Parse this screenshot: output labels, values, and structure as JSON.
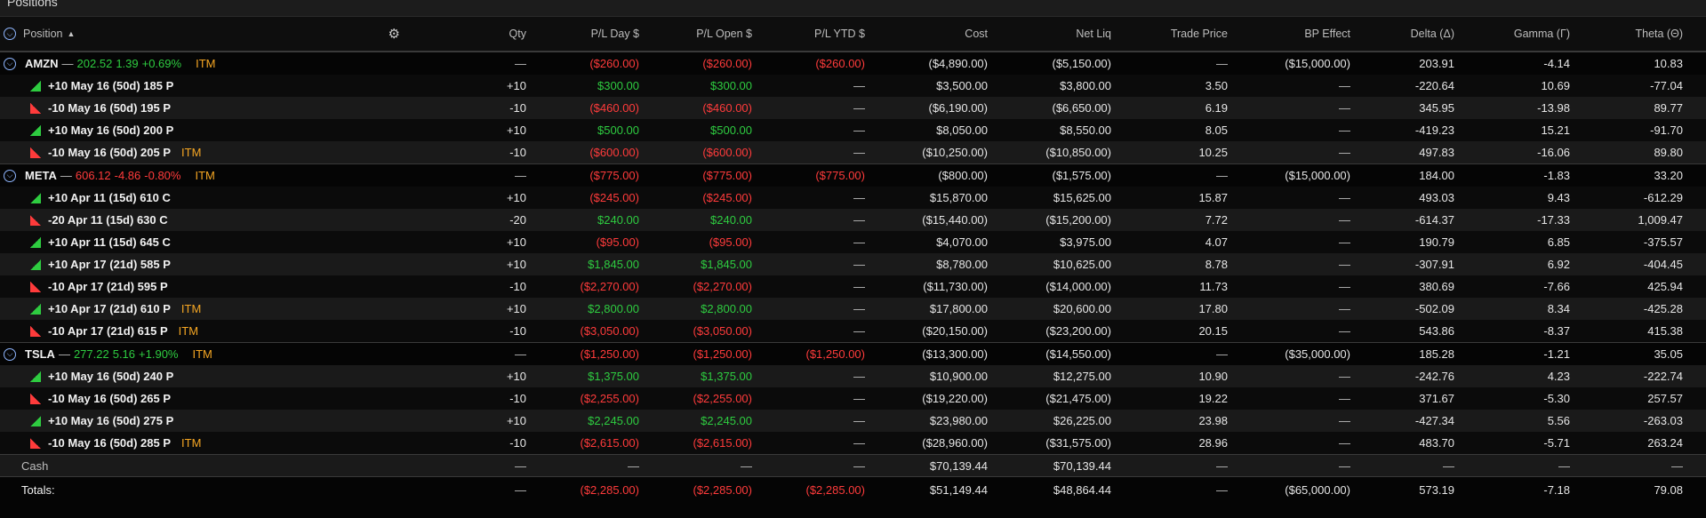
{
  "title": "Positions",
  "headers": {
    "position": "Position",
    "qty": "Qty",
    "pl_day": "P/L Day $",
    "pl_open": "P/L Open $",
    "pl_ytd": "P/L YTD $",
    "cost": "Cost",
    "net_liq": "Net Liq",
    "trade_price": "Trade Price",
    "bp_effect": "BP Effect",
    "delta": "Delta (Δ)",
    "gamma": "Gamma (Γ)",
    "theta": "Theta (Θ)"
  },
  "icons": {
    "expand": "expand-collapse-icon",
    "gear": "gear-icon",
    "sort": "sort-ascending-icon"
  },
  "colors": {
    "positive": "#2ecc40",
    "negative": "#ff3b3b",
    "itm": "#f5a623"
  },
  "groups": [
    {
      "symbol": "AMZN",
      "dash": "—",
      "price": "202.52",
      "change": "1.39",
      "change_pct": "+0.69%",
      "trend": "up",
      "itm": "ITM",
      "qty": "—",
      "pl_day": "($260.00)",
      "pl_open": "($260.00)",
      "pl_ytd": "($260.00)",
      "cost": "($4,890.00)",
      "net_liq": "($5,150.00)",
      "trade_price": "—",
      "bp_effect": "($15,000.00)",
      "delta": "203.91",
      "gamma": "-4.14",
      "theta": "10.83",
      "legs": [
        {
          "dir": "up",
          "label": "+10 May 16 (50d) 185 P",
          "itm": "",
          "qty": "+10",
          "pl_day": "$300.00",
          "pl_day_sign": "pos",
          "pl_open": "$300.00",
          "pl_open_sign": "pos",
          "pl_ytd": "—",
          "cost": "$3,500.00",
          "net_liq": "$3,800.00",
          "trade_price": "3.50",
          "bp_effect": "—",
          "delta": "-220.64",
          "gamma": "10.69",
          "theta": "-77.04"
        },
        {
          "dir": "dn",
          "label": "-10 May 16 (50d) 195 P",
          "itm": "",
          "qty": "-10",
          "pl_day": "($460.00)",
          "pl_day_sign": "neg",
          "pl_open": "($460.00)",
          "pl_open_sign": "neg",
          "pl_ytd": "—",
          "cost": "($6,190.00)",
          "net_liq": "($6,650.00)",
          "trade_price": "6.19",
          "bp_effect": "—",
          "delta": "345.95",
          "gamma": "-13.98",
          "theta": "89.77"
        },
        {
          "dir": "up",
          "label": "+10 May 16 (50d) 200 P",
          "itm": "",
          "qty": "+10",
          "pl_day": "$500.00",
          "pl_day_sign": "pos",
          "pl_open": "$500.00",
          "pl_open_sign": "pos",
          "pl_ytd": "—",
          "cost": "$8,050.00",
          "net_liq": "$8,550.00",
          "trade_price": "8.05",
          "bp_effect": "—",
          "delta": "-419.23",
          "gamma": "15.21",
          "theta": "-91.70"
        },
        {
          "dir": "dn",
          "label": "-10 May 16 (50d) 205 P",
          "itm": "ITM",
          "qty": "-10",
          "pl_day": "($600.00)",
          "pl_day_sign": "neg",
          "pl_open": "($600.00)",
          "pl_open_sign": "neg",
          "pl_ytd": "—",
          "cost": "($10,250.00)",
          "net_liq": "($10,850.00)",
          "trade_price": "10.25",
          "bp_effect": "—",
          "delta": "497.83",
          "gamma": "-16.06",
          "theta": "89.80"
        }
      ]
    },
    {
      "symbol": "META",
      "dash": "—",
      "price": "606.12",
      "change": "-4.86",
      "change_pct": "-0.80%",
      "trend": "down",
      "itm": "ITM",
      "qty": "—",
      "pl_day": "($775.00)",
      "pl_open": "($775.00)",
      "pl_ytd": "($775.00)",
      "cost": "($800.00)",
      "net_liq": "($1,575.00)",
      "trade_price": "—",
      "bp_effect": "($15,000.00)",
      "delta": "184.00",
      "gamma": "-1.83",
      "theta": "33.20",
      "legs": [
        {
          "dir": "up",
          "label": "+10 Apr 11 (15d) 610 C",
          "itm": "",
          "qty": "+10",
          "pl_day": "($245.00)",
          "pl_day_sign": "neg",
          "pl_open": "($245.00)",
          "pl_open_sign": "neg",
          "pl_ytd": "—",
          "cost": "$15,870.00",
          "net_liq": "$15,625.00",
          "trade_price": "15.87",
          "bp_effect": "—",
          "delta": "493.03",
          "gamma": "9.43",
          "theta": "-612.29"
        },
        {
          "dir": "dn",
          "label": "-20 Apr 11 (15d) 630 C",
          "itm": "",
          "qty": "-20",
          "pl_day": "$240.00",
          "pl_day_sign": "pos",
          "pl_open": "$240.00",
          "pl_open_sign": "pos",
          "pl_ytd": "—",
          "cost": "($15,440.00)",
          "net_liq": "($15,200.00)",
          "trade_price": "7.72",
          "bp_effect": "—",
          "delta": "-614.37",
          "gamma": "-17.33",
          "theta": "1,009.47"
        },
        {
          "dir": "up",
          "label": "+10 Apr 11 (15d) 645 C",
          "itm": "",
          "qty": "+10",
          "pl_day": "($95.00)",
          "pl_day_sign": "neg",
          "pl_open": "($95.00)",
          "pl_open_sign": "neg",
          "pl_ytd": "—",
          "cost": "$4,070.00",
          "net_liq": "$3,975.00",
          "trade_price": "4.07",
          "bp_effect": "—",
          "delta": "190.79",
          "gamma": "6.85",
          "theta": "-375.57"
        },
        {
          "dir": "up",
          "label": "+10 Apr 17 (21d) 585 P",
          "itm": "",
          "qty": "+10",
          "pl_day": "$1,845.00",
          "pl_day_sign": "pos",
          "pl_open": "$1,845.00",
          "pl_open_sign": "pos",
          "pl_ytd": "—",
          "cost": "$8,780.00",
          "net_liq": "$10,625.00",
          "trade_price": "8.78",
          "bp_effect": "—",
          "delta": "-307.91",
          "gamma": "6.92",
          "theta": "-404.45"
        },
        {
          "dir": "dn",
          "label": "-10 Apr 17 (21d) 595 P",
          "itm": "",
          "qty": "-10",
          "pl_day": "($2,270.00)",
          "pl_day_sign": "neg",
          "pl_open": "($2,270.00)",
          "pl_open_sign": "neg",
          "pl_ytd": "—",
          "cost": "($11,730.00)",
          "net_liq": "($14,000.00)",
          "trade_price": "11.73",
          "bp_effect": "—",
          "delta": "380.69",
          "gamma": "-7.66",
          "theta": "425.94"
        },
        {
          "dir": "up",
          "label": "+10 Apr 17 (21d) 610 P",
          "itm": "ITM",
          "qty": "+10",
          "pl_day": "$2,800.00",
          "pl_day_sign": "pos",
          "pl_open": "$2,800.00",
          "pl_open_sign": "pos",
          "pl_ytd": "—",
          "cost": "$17,800.00",
          "net_liq": "$20,600.00",
          "trade_price": "17.80",
          "bp_effect": "—",
          "delta": "-502.09",
          "gamma": "8.34",
          "theta": "-425.28"
        },
        {
          "dir": "dn",
          "label": "-10 Apr 17 (21d) 615 P",
          "itm": "ITM",
          "qty": "-10",
          "pl_day": "($3,050.00)",
          "pl_day_sign": "neg",
          "pl_open": "($3,050.00)",
          "pl_open_sign": "neg",
          "pl_ytd": "—",
          "cost": "($20,150.00)",
          "net_liq": "($23,200.00)",
          "trade_price": "20.15",
          "bp_effect": "—",
          "delta": "543.86",
          "gamma": "-8.37",
          "theta": "415.38"
        }
      ]
    },
    {
      "symbol": "TSLA",
      "dash": "—",
      "price": "277.22",
      "change": "5.16",
      "change_pct": "+1.90%",
      "trend": "up",
      "itm": "ITM",
      "qty": "—",
      "pl_day": "($1,250.00)",
      "pl_open": "($1,250.00)",
      "pl_ytd": "($1,250.00)",
      "cost": "($13,300.00)",
      "net_liq": "($14,550.00)",
      "trade_price": "—",
      "bp_effect": "($35,000.00)",
      "delta": "185.28",
      "gamma": "-1.21",
      "theta": "35.05",
      "legs": [
        {
          "dir": "up",
          "label": "+10 May 16 (50d) 240 P",
          "itm": "",
          "qty": "+10",
          "pl_day": "$1,375.00",
          "pl_day_sign": "pos",
          "pl_open": "$1,375.00",
          "pl_open_sign": "pos",
          "pl_ytd": "—",
          "cost": "$10,900.00",
          "net_liq": "$12,275.00",
          "trade_price": "10.90",
          "bp_effect": "—",
          "delta": "-242.76",
          "gamma": "4.23",
          "theta": "-222.74"
        },
        {
          "dir": "dn",
          "label": "-10 May 16 (50d) 265 P",
          "itm": "",
          "qty": "-10",
          "pl_day": "($2,255.00)",
          "pl_day_sign": "neg",
          "pl_open": "($2,255.00)",
          "pl_open_sign": "neg",
          "pl_ytd": "—",
          "cost": "($19,220.00)",
          "net_liq": "($21,475.00)",
          "trade_price": "19.22",
          "bp_effect": "—",
          "delta": "371.67",
          "gamma": "-5.30",
          "theta": "257.57"
        },
        {
          "dir": "up",
          "label": "+10 May 16 (50d) 275 P",
          "itm": "",
          "qty": "+10",
          "pl_day": "$2,245.00",
          "pl_day_sign": "pos",
          "pl_open": "$2,245.00",
          "pl_open_sign": "pos",
          "pl_ytd": "—",
          "cost": "$23,980.00",
          "net_liq": "$26,225.00",
          "trade_price": "23.98",
          "bp_effect": "—",
          "delta": "-427.34",
          "gamma": "5.56",
          "theta": "-263.03"
        },
        {
          "dir": "dn",
          "label": "-10 May 16 (50d) 285 P",
          "itm": "ITM",
          "qty": "-10",
          "pl_day": "($2,615.00)",
          "pl_day_sign": "neg",
          "pl_open": "($2,615.00)",
          "pl_open_sign": "neg",
          "pl_ytd": "—",
          "cost": "($28,960.00)",
          "net_liq": "($31,575.00)",
          "trade_price": "28.96",
          "bp_effect": "—",
          "delta": "483.70",
          "gamma": "-5.71",
          "theta": "263.24"
        }
      ]
    }
  ],
  "cash": {
    "label": "Cash",
    "qty": "—",
    "pl_day": "—",
    "pl_open": "—",
    "pl_ytd": "—",
    "cost": "$70,139.44",
    "net_liq": "$70,139.44",
    "trade_price": "—",
    "bp_effect": "—",
    "delta": "—",
    "gamma": "—",
    "theta": "—"
  },
  "totals": {
    "label": "Totals:",
    "qty": "—",
    "pl_day": "($2,285.00)",
    "pl_open": "($2,285.00)",
    "pl_ytd": "($2,285.00)",
    "cost": "$51,149.44",
    "net_liq": "$48,864.44",
    "trade_price": "—",
    "bp_effect": "($65,000.00)",
    "delta": "573.19",
    "gamma": "-7.18",
    "theta": "79.08"
  }
}
